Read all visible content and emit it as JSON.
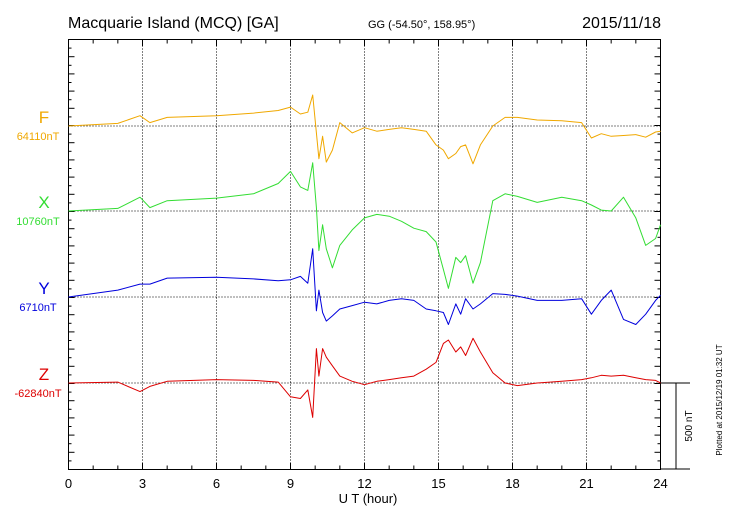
{
  "header": {
    "title": "Macquarie Island (MCQ)  [GA]",
    "coords": "GG (-54.50°, 158.95°)",
    "date": "2015/11/18"
  },
  "footer": {
    "plotted": "Plotted at 2015/12/19 01:32 UT"
  },
  "chart_data": {
    "type": "line",
    "xlabel": "U T (hour)",
    "xlim": [
      0,
      24
    ],
    "xticks": [
      "0",
      "3",
      "6",
      "9",
      "12",
      "15",
      "18",
      "21",
      "24"
    ],
    "y_units": "nT",
    "scale_bar_label": "500 nT",
    "scale_bar_nT": 500,
    "grid": true,
    "series": [
      {
        "name": "F",
        "baseline_label": "64110nT",
        "baseline_nT": 64110,
        "color": "#f0a800",
        "t": [
          0,
          2,
          2.9,
          3.3,
          4,
          6,
          7.5,
          8.5,
          9.0,
          9.4,
          9.7,
          9.9,
          10.05,
          10.15,
          10.3,
          10.45,
          10.7,
          11.0,
          11.5,
          12.0,
          12.5,
          13.0,
          13.5,
          14.0,
          14.5,
          14.9,
          15.2,
          15.4,
          15.7,
          15.9,
          16.1,
          16.4,
          16.7,
          17.2,
          17.7,
          18.2,
          19,
          20,
          20.8,
          21.2,
          21.6,
          22,
          22.5,
          23,
          23.4,
          23.8,
          24
        ],
        "values": [
          0,
          15,
          60,
          20,
          50,
          60,
          75,
          90,
          110,
          70,
          80,
          180,
          -40,
          -190,
          -60,
          -210,
          -140,
          20,
          -40,
          -10,
          -30,
          -20,
          -10,
          -20,
          -30,
          -110,
          -140,
          -190,
          -160,
          -120,
          -110,
          -220,
          -110,
          0,
          50,
          50,
          35,
          30,
          20,
          -70,
          -45,
          -60,
          -55,
          -50,
          -65,
          -35,
          -30
        ]
      },
      {
        "name": "X",
        "baseline_label": "10760nT",
        "baseline_nT": 10760,
        "color": "#33dd33",
        "t": [
          0,
          2,
          2.9,
          3.3,
          4,
          6,
          7.5,
          8.5,
          9.0,
          9.4,
          9.7,
          9.9,
          10.05,
          10.15,
          10.3,
          10.45,
          10.7,
          11.0,
          11.5,
          12.0,
          12.5,
          13.0,
          13.5,
          14.0,
          14.5,
          14.9,
          15.2,
          15.4,
          15.7,
          15.9,
          16.1,
          16.4,
          16.7,
          17.2,
          17.7,
          18.2,
          19,
          20,
          20.8,
          21.2,
          21.6,
          22,
          22.5,
          23,
          23.4,
          23.8,
          24
        ],
        "values": [
          0,
          15,
          80,
          20,
          60,
          75,
          100,
          160,
          230,
          140,
          120,
          280,
          20,
          -230,
          -80,
          -220,
          -330,
          -200,
          -110,
          -40,
          -20,
          -30,
          -60,
          -100,
          -120,
          -180,
          -340,
          -450,
          -270,
          -300,
          -260,
          -420,
          -300,
          60,
          100,
          85,
          50,
          80,
          60,
          35,
          5,
          0,
          80,
          -40,
          -200,
          -160,
          -80
        ]
      },
      {
        "name": "Y",
        "baseline_label": "6710nT",
        "baseline_nT": 6710,
        "color": "#0000dd",
        "t": [
          0,
          2,
          2.9,
          3.3,
          4,
          6,
          7.5,
          8.5,
          9.0,
          9.4,
          9.7,
          9.9,
          10.05,
          10.15,
          10.3,
          10.45,
          10.7,
          11.0,
          11.5,
          12.0,
          12.5,
          13.0,
          13.5,
          14.0,
          14.5,
          14.9,
          15.2,
          15.4,
          15.7,
          15.9,
          16.1,
          16.4,
          16.7,
          17.2,
          17.7,
          18.2,
          19,
          20,
          20.8,
          21.2,
          21.6,
          22,
          22.5,
          23,
          23.4,
          23.8,
          24
        ],
        "values": [
          0,
          40,
          75,
          75,
          110,
          115,
          105,
          95,
          100,
          120,
          80,
          280,
          -80,
          40,
          -90,
          -140,
          -110,
          -70,
          -50,
          -30,
          -40,
          -20,
          -10,
          -20,
          -70,
          -80,
          -90,
          -160,
          -40,
          -100,
          -10,
          -70,
          -40,
          20,
          15,
          5,
          -20,
          -20,
          -10,
          -100,
          -20,
          40,
          -130,
          -160,
          -100,
          -20,
          10
        ]
      },
      {
        "name": "Z",
        "baseline_label": "-62840nT",
        "baseline_nT": -62840,
        "color": "#dd0000",
        "t": [
          0,
          2,
          2.9,
          3.3,
          4,
          6,
          7.5,
          8.5,
          9.0,
          9.4,
          9.7,
          9.9,
          10.05,
          10.15,
          10.3,
          10.45,
          10.7,
          11.0,
          11.5,
          12.0,
          12.5,
          13.0,
          13.5,
          14.0,
          14.5,
          14.9,
          15.2,
          15.4,
          15.7,
          15.9,
          16.1,
          16.4,
          16.7,
          17.2,
          17.7,
          18.2,
          19,
          20,
          20.8,
          21.2,
          21.6,
          22,
          22.5,
          23,
          23.4,
          23.8,
          24
        ],
        "values": [
          0,
          5,
          -50,
          -20,
          10,
          20,
          15,
          5,
          -80,
          -90,
          -40,
          -200,
          200,
          40,
          200,
          150,
          100,
          40,
          10,
          -10,
          10,
          20,
          30,
          40,
          80,
          120,
          230,
          250,
          180,
          210,
          160,
          260,
          180,
          60,
          0,
          -15,
          0,
          10,
          20,
          30,
          45,
          40,
          45,
          30,
          20,
          15,
          0
        ]
      }
    ]
  }
}
